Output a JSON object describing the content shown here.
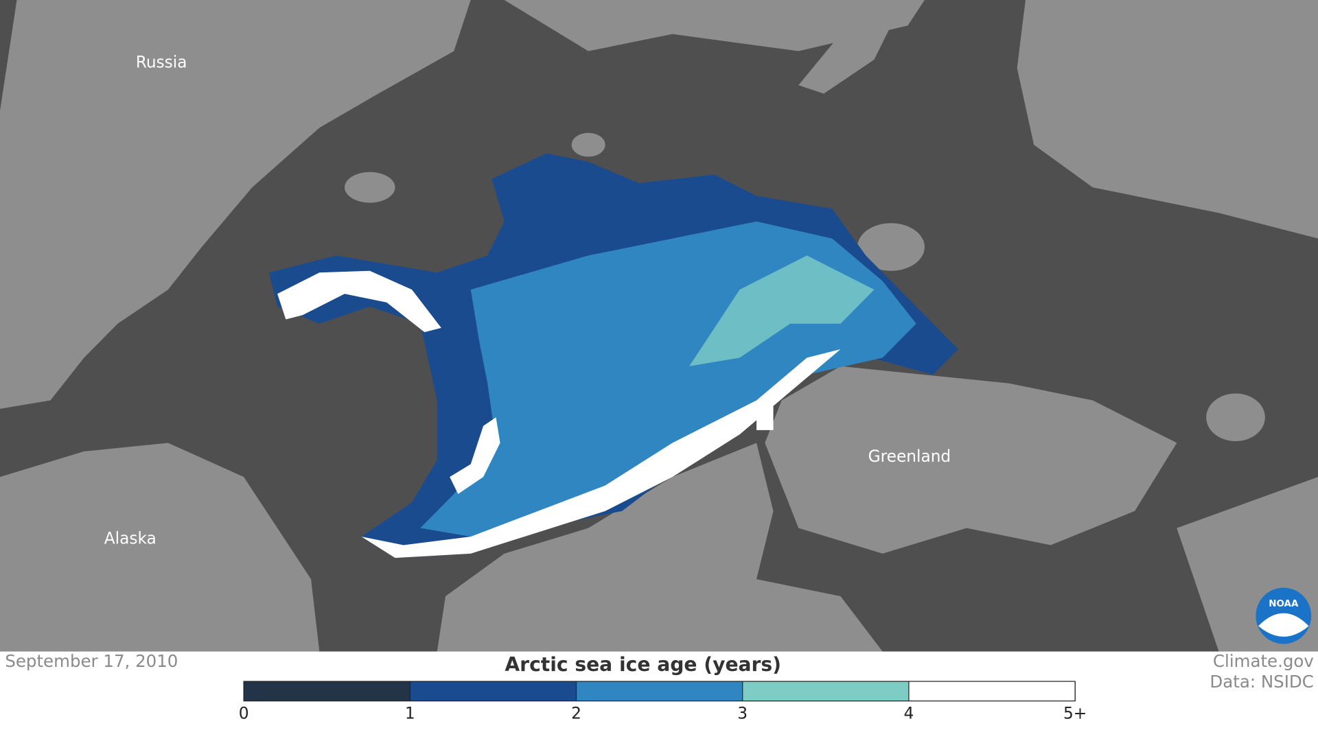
{
  "map": {
    "labels": [
      "Russia",
      "Alaska",
      "Greenland"
    ],
    "date": "September 17, 2010",
    "credit": "Climate.gov",
    "source": "Data: NSIDC",
    "logo": "NOAA"
  },
  "legend": {
    "title": "Arctic sea ice age (years)",
    "ticks": [
      0,
      1,
      2,
      3,
      4,
      {
        "value": 5,
        "label": "5+"
      }
    ],
    "colors": [
      "#233449",
      "#1b4b8f",
      "#2f86c0",
      "#7ecdc5",
      "#ffffff"
    ]
  }
}
